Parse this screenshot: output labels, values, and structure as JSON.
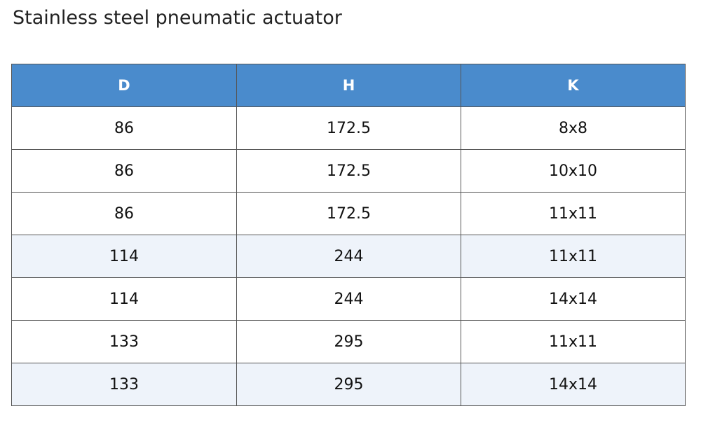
{
  "header": {
    "title": "Stainless steel pneumatic actuator"
  },
  "table": {
    "columns": [
      "D",
      "H",
      "K"
    ],
    "rows": [
      [
        "86",
        "172.5",
        "8x8"
      ],
      [
        "86",
        "172.5",
        "10x10"
      ],
      [
        "86",
        "172.5",
        "11x11"
      ],
      [
        "114",
        "244",
        "11x11"
      ],
      [
        "114",
        "244",
        "14x14"
      ],
      [
        "133",
        "295",
        "11x11"
      ],
      [
        "133",
        "295",
        "14x14"
      ]
    ]
  }
}
